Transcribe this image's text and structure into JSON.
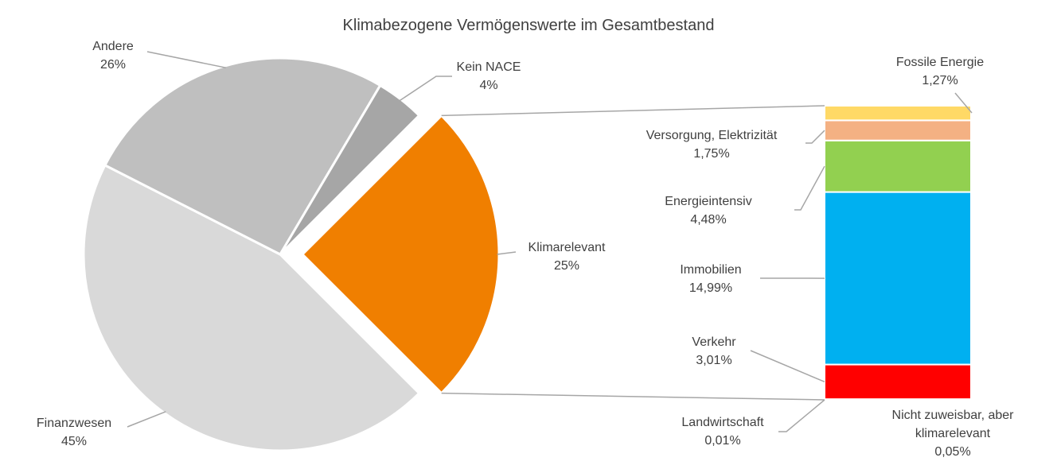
{
  "chart_data": {
    "type": "pie",
    "title": "Klimabezogene Vermögenswerte im Gesamtbestand",
    "slices": [
      {
        "name": "Klimarelevant",
        "value": 25,
        "label": "25%",
        "color": "#F07F00"
      },
      {
        "name": "Finanzwesen",
        "value": 45,
        "label": "45%",
        "color": "#D9D9D9"
      },
      {
        "name": "Andere",
        "value": 26,
        "label": "26%",
        "color": "#BFBFBF"
      },
      {
        "name": "Kein NACE",
        "value": 4,
        "label": "4%",
        "color": "#A6A6A6"
      }
    ],
    "breakdown": {
      "type": "stacked-bar",
      "of_slice": "Klimarelevant",
      "segments": [
        {
          "name": "Nicht zuweisbar, aber klimarelevant",
          "value": 0.05,
          "label": "0,05%",
          "color": "#BFBFBF"
        },
        {
          "name": "Landwirtschaft",
          "value": 0.01,
          "label": "0,01%",
          "color": "#70AD47"
        },
        {
          "name": "Verkehr",
          "value": 3.01,
          "label": "3,01%",
          "color": "#FF0000"
        },
        {
          "name": "Immobilien",
          "value": 14.99,
          "label": "14,99%",
          "color": "#00B0F0"
        },
        {
          "name": "Energieintensiv",
          "value": 4.48,
          "label": "4,48%",
          "color": "#92D050"
        },
        {
          "name": "Versorgung, Elektrizität",
          "value": 1.75,
          "label": "1,75%",
          "color": "#F4B183"
        },
        {
          "name": "Fossile Energie",
          "value": 1.27,
          "label": "1,27%",
          "color": "#FFD966"
        }
      ]
    }
  }
}
